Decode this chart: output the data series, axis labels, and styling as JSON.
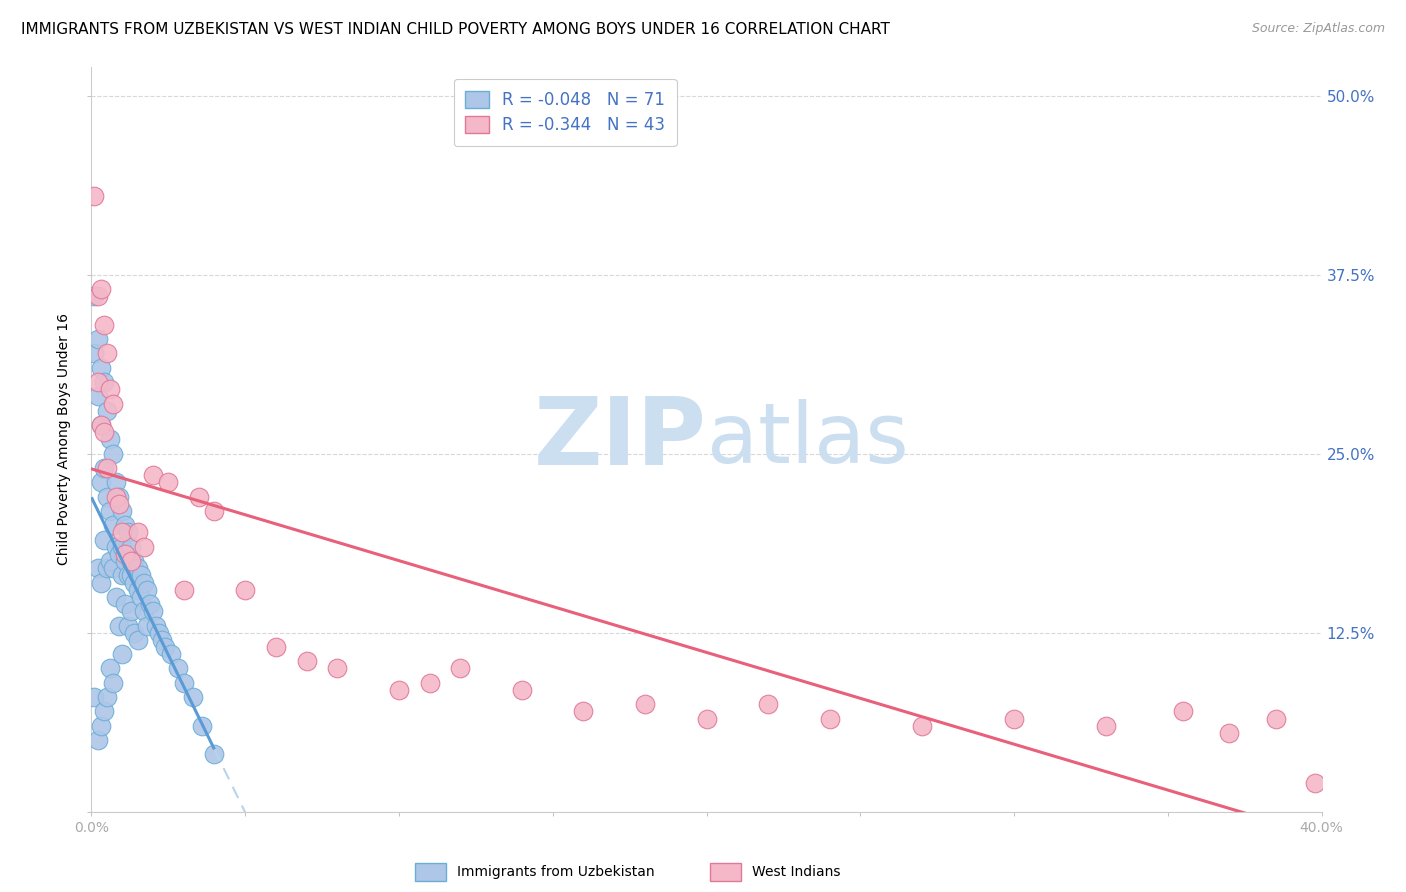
{
  "title": "IMMIGRANTS FROM UZBEKISTAN VS WEST INDIAN CHILD POVERTY AMONG BOYS UNDER 16 CORRELATION CHART",
  "source": "Source: ZipAtlas.com",
  "ylabel": "Child Poverty Among Boys Under 16",
  "r_uzbekistan": -0.048,
  "n_uzbekistan": 71,
  "r_west_indian": -0.344,
  "n_west_indian": 43,
  "color_uzbekistan_fill": "#aec6e8",
  "color_uzbekistan_edge": "#6aaed6",
  "color_west_indian_fill": "#f4b8c8",
  "color_west_indian_edge": "#e07898",
  "color_uzbekistan_line": "#5b9bd5",
  "color_west_indian_line": "#e8607a",
  "color_dashed": "#b8d4ea",
  "color_right_axis": "#4472c4",
  "background_color": "#ffffff",
  "grid_color": "#d8d8d8",
  "uzbekistan_x": [
    0.001,
    0.001,
    0.001,
    0.002,
    0.002,
    0.002,
    0.002,
    0.003,
    0.003,
    0.003,
    0.003,
    0.003,
    0.004,
    0.004,
    0.004,
    0.004,
    0.005,
    0.005,
    0.005,
    0.005,
    0.006,
    0.006,
    0.006,
    0.006,
    0.007,
    0.007,
    0.007,
    0.007,
    0.008,
    0.008,
    0.008,
    0.009,
    0.009,
    0.009,
    0.01,
    0.01,
    0.01,
    0.01,
    0.011,
    0.011,
    0.011,
    0.012,
    0.012,
    0.012,
    0.013,
    0.013,
    0.013,
    0.014,
    0.014,
    0.014,
    0.015,
    0.015,
    0.015,
    0.016,
    0.016,
    0.017,
    0.017,
    0.018,
    0.018,
    0.019,
    0.02,
    0.021,
    0.022,
    0.023,
    0.024,
    0.026,
    0.028,
    0.03,
    0.033,
    0.036,
    0.04
  ],
  "uzbekistan_y": [
    0.36,
    0.32,
    0.08,
    0.33,
    0.29,
    0.17,
    0.05,
    0.31,
    0.27,
    0.23,
    0.16,
    0.06,
    0.3,
    0.24,
    0.19,
    0.07,
    0.28,
    0.22,
    0.17,
    0.08,
    0.26,
    0.21,
    0.175,
    0.1,
    0.25,
    0.2,
    0.17,
    0.09,
    0.23,
    0.185,
    0.15,
    0.22,
    0.18,
    0.13,
    0.21,
    0.185,
    0.165,
    0.11,
    0.2,
    0.175,
    0.145,
    0.195,
    0.165,
    0.13,
    0.185,
    0.165,
    0.14,
    0.175,
    0.16,
    0.125,
    0.17,
    0.155,
    0.12,
    0.165,
    0.15,
    0.16,
    0.14,
    0.155,
    0.13,
    0.145,
    0.14,
    0.13,
    0.125,
    0.12,
    0.115,
    0.11,
    0.1,
    0.09,
    0.08,
    0.06,
    0.04
  ],
  "west_indian_x": [
    0.001,
    0.002,
    0.002,
    0.003,
    0.003,
    0.004,
    0.004,
    0.005,
    0.005,
    0.006,
    0.007,
    0.008,
    0.009,
    0.01,
    0.011,
    0.013,
    0.015,
    0.017,
    0.02,
    0.025,
    0.03,
    0.035,
    0.04,
    0.05,
    0.06,
    0.07,
    0.08,
    0.1,
    0.11,
    0.12,
    0.14,
    0.16,
    0.18,
    0.2,
    0.22,
    0.24,
    0.27,
    0.3,
    0.33,
    0.355,
    0.37,
    0.385,
    0.398
  ],
  "west_indian_y": [
    0.43,
    0.36,
    0.3,
    0.365,
    0.27,
    0.34,
    0.265,
    0.32,
    0.24,
    0.295,
    0.285,
    0.22,
    0.215,
    0.195,
    0.18,
    0.175,
    0.195,
    0.185,
    0.235,
    0.23,
    0.155,
    0.22,
    0.21,
    0.155,
    0.115,
    0.105,
    0.1,
    0.085,
    0.09,
    0.1,
    0.085,
    0.07,
    0.075,
    0.065,
    0.075,
    0.065,
    0.06,
    0.065,
    0.06,
    0.07,
    0.055,
    0.065,
    0.02
  ],
  "xlim": [
    0.0,
    0.4
  ],
  "ylim": [
    0.0,
    0.52
  ],
  "xticks": [
    0.0,
    0.05,
    0.1,
    0.15,
    0.2,
    0.25,
    0.3,
    0.35,
    0.4
  ],
  "xticklabels": [
    "0.0%",
    "",
    "",
    "",
    "",
    "",
    "",
    "",
    "40.0%"
  ],
  "yticks_right": [
    0.0,
    0.125,
    0.25,
    0.375,
    0.5
  ],
  "ytick_right_labels": [
    "",
    "12.5%",
    "25.0%",
    "37.5%",
    "50.0%"
  ],
  "watermark_zip": "ZIP",
  "watermark_atlas": "atlas",
  "watermark_color_zip": "#ccdff0",
  "watermark_color_atlas": "#ccdff0",
  "title_fontsize": 11,
  "axis_label_fontsize": 10
}
